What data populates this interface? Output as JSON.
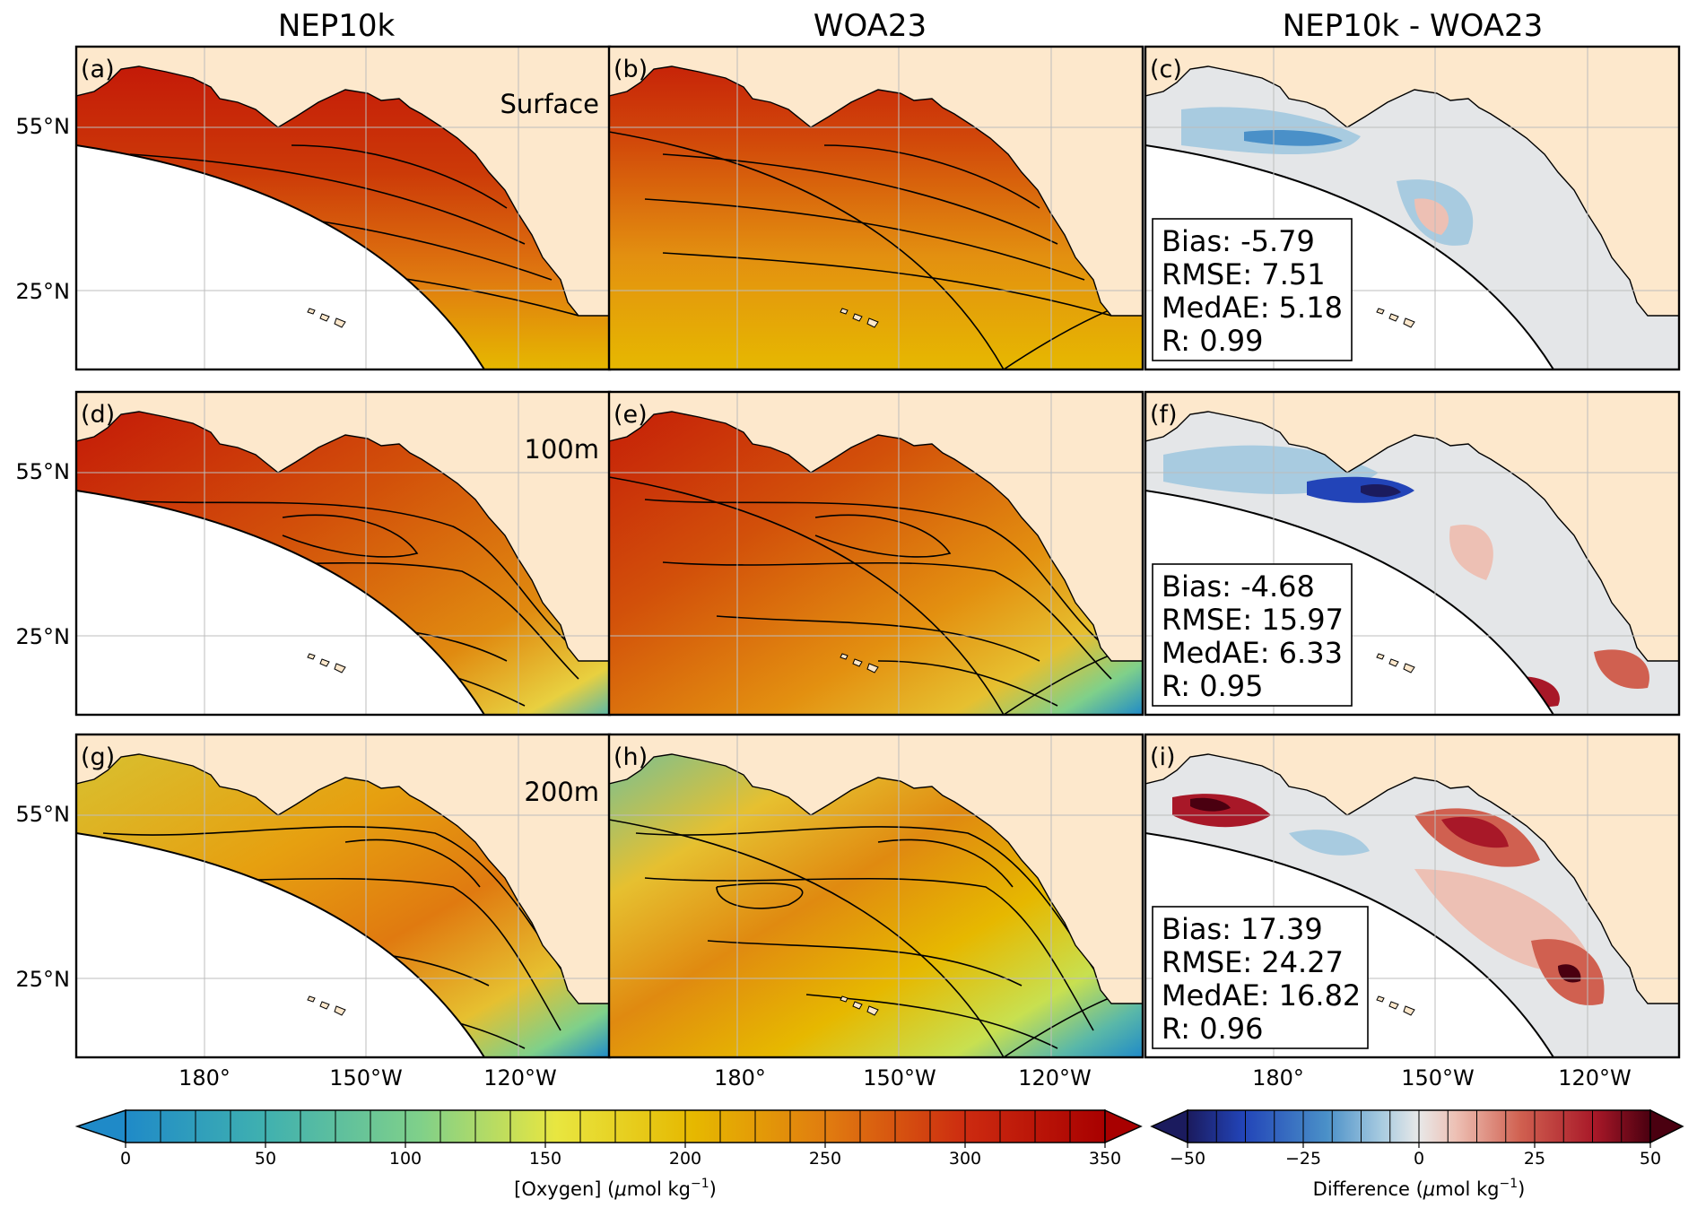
{
  "columns": [
    "NEP10k",
    "WOA23",
    "NEP10k - WOA23"
  ],
  "rows": [
    {
      "depth": "Surface",
      "panels": [
        "(a)",
        "(b)",
        "(c)"
      ],
      "stats": {
        "bias": "Bias: -5.79",
        "rmse": "RMSE: 7.51",
        "medae": "MedAE: 5.18",
        "r": "R: 0.99"
      }
    },
    {
      "depth": "100m",
      "panels": [
        "(d)",
        "(e)",
        "(f)"
      ],
      "stats": {
        "bias": "Bias: -4.68",
        "rmse": "RMSE: 15.97",
        "medae": "MedAE: 6.33",
        "r": "R: 0.95"
      }
    },
    {
      "depth": "200m",
      "panels": [
        "(g)",
        "(h)",
        "(i)"
      ],
      "stats": {
        "bias": "Bias: 17.39",
        "rmse": "RMSE: 24.27",
        "medae": "MedAE: 16.82",
        "r": "R: 0.96"
      }
    }
  ],
  "lat_labels": [
    "55°N",
    "25°N"
  ],
  "lon_labels": [
    "180°",
    "150°W",
    "120°W"
  ],
  "colorbar_oxygen": {
    "ticks": [
      "0",
      "50",
      "100",
      "150",
      "200",
      "250",
      "300",
      "350"
    ],
    "tick_values": [
      0,
      50,
      100,
      150,
      200,
      250,
      300,
      350
    ],
    "range": [
      0,
      350
    ],
    "step": 12.5,
    "label_main": "[Oxygen] (",
    "label_mu": "μ",
    "label_unit": "mol kg",
    "label_exp": "−1",
    "label_close": ")",
    "colormap": [
      "#1f8ac8",
      "#3fb0b0",
      "#7fd08a",
      "#e8e640",
      "#e6b800",
      "#e07a10",
      "#cc2a10",
      "#a80000"
    ]
  },
  "colorbar_diff": {
    "ticks": [
      "−50",
      "−25",
      "0",
      "25",
      "50"
    ],
    "tick_values": [
      -50,
      -25,
      0,
      25,
      50
    ],
    "range": [
      -50,
      50
    ],
    "step": 6.25,
    "label_main": "Difference (",
    "label_mu": "μ",
    "label_unit": "mol kg",
    "label_exp": "−1",
    "label_close": ")",
    "colormap": [
      "#1b1b5e",
      "#2244b8",
      "#4a90c8",
      "#a8cbe0",
      "#e8e8e8",
      "#edc0b4",
      "#d06050",
      "#a81828",
      "#4a0010"
    ]
  },
  "colors": {
    "land": "#fde8cc",
    "ocean_blank": "#ffffff",
    "frame": "#000000",
    "grid": "#bdbdbd"
  }
}
